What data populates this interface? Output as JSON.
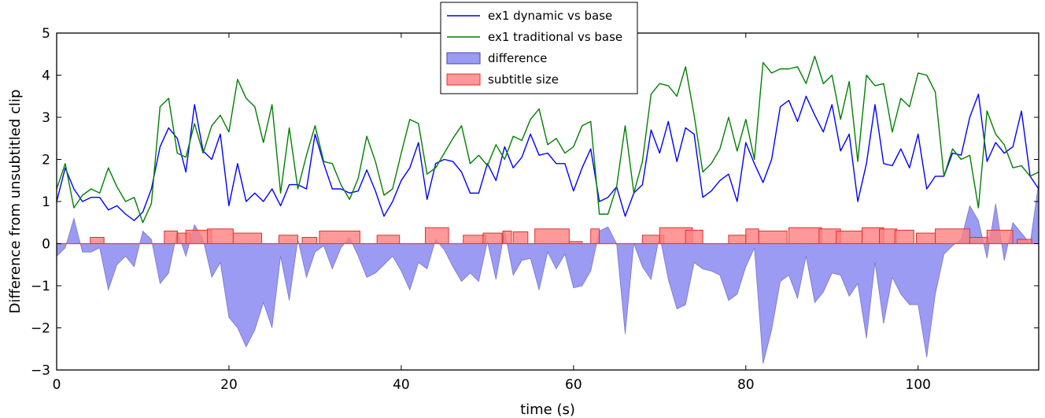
{
  "chart_data": {
    "type": "line",
    "title": "",
    "xlabel": "time (s)",
    "ylabel": "Difference from unsubtitled clip",
    "xlim": [
      0,
      114
    ],
    "ylim": [
      -3,
      5
    ],
    "xticks": [
      0,
      20,
      40,
      60,
      80,
      100
    ],
    "yticks": [
      -3,
      -2,
      -1,
      0,
      1,
      2,
      3,
      4,
      5
    ],
    "grid": false,
    "legend_position": "top-center",
    "series": [
      {
        "name": "ex1 dynamic vs base",
        "kind": "line",
        "color": "#0000ff",
        "x": [
          0,
          1,
          2,
          3,
          4,
          5,
          6,
          7,
          8,
          9,
          10,
          11,
          12,
          13,
          14,
          15,
          16,
          17,
          18,
          19,
          20,
          21,
          22,
          23,
          24,
          25,
          26,
          27,
          28,
          29,
          30,
          31,
          32,
          33,
          34,
          35,
          36,
          37,
          38,
          39,
          40,
          41,
          42,
          43,
          44,
          45,
          46,
          47,
          48,
          49,
          50,
          51,
          52,
          53,
          54,
          55,
          56,
          57,
          58,
          59,
          60,
          61,
          62,
          63,
          64,
          65,
          66,
          67,
          68,
          69,
          70,
          71,
          72,
          73,
          74,
          75,
          76,
          77,
          78,
          79,
          80,
          81,
          82,
          83,
          84,
          85,
          86,
          87,
          88,
          89,
          90,
          91,
          92,
          93,
          94,
          95,
          96,
          97,
          98,
          99,
          100,
          101,
          102,
          103,
          104,
          105,
          106,
          107,
          108,
          109,
          110,
          111,
          112,
          113,
          114
        ],
        "y": [
          1.0,
          1.8,
          1.3,
          1.0,
          1.1,
          1.1,
          0.8,
          0.9,
          0.7,
          0.55,
          0.75,
          1.3,
          2.3,
          2.75,
          2.5,
          1.7,
          3.3,
          2.2,
          2.0,
          2.6,
          0.9,
          1.9,
          1.0,
          1.2,
          1.0,
          1.3,
          0.9,
          1.4,
          1.4,
          1.3,
          2.6,
          1.9,
          1.3,
          1.3,
          1.2,
          1.25,
          1.75,
          1.25,
          0.65,
          1.0,
          1.5,
          1.8,
          2.4,
          1.05,
          1.9,
          2.0,
          1.95,
          1.7,
          1.2,
          1.2,
          1.9,
          1.5,
          2.3,
          1.8,
          2.05,
          2.6,
          2.1,
          2.15,
          1.9,
          1.9,
          1.25,
          1.8,
          2.25,
          1.0,
          1.1,
          1.35,
          0.65,
          1.2,
          1.4,
          2.7,
          2.15,
          2.9,
          1.95,
          2.75,
          2.6,
          1.1,
          1.25,
          1.5,
          1.65,
          1.0,
          2.4,
          1.9,
          1.45,
          2.0,
          3.25,
          3.4,
          2.9,
          3.5,
          3.05,
          2.65,
          3.3,
          2.2,
          2.6,
          1.0,
          1.9,
          3.3,
          1.9,
          1.85,
          2.25,
          1.8,
          2.6,
          1.3,
          1.6,
          1.6,
          2.15,
          2.1,
          3.0,
          3.55,
          1.95,
          2.4,
          2.15,
          2.3,
          3.15,
          1.6,
          1.3
        ]
      },
      {
        "name": "ex1 traditional vs base",
        "kind": "line",
        "color": "#008000",
        "x": [
          0,
          1,
          2,
          3,
          4,
          5,
          6,
          7,
          8,
          9,
          10,
          11,
          12,
          13,
          14,
          15,
          16,
          17,
          18,
          19,
          20,
          21,
          22,
          23,
          24,
          25,
          26,
          27,
          28,
          29,
          30,
          31,
          32,
          33,
          34,
          35,
          36,
          37,
          38,
          39,
          40,
          41,
          42,
          43,
          44,
          45,
          46,
          47,
          48,
          49,
          50,
          51,
          52,
          53,
          54,
          55,
          56,
          57,
          58,
          59,
          60,
          61,
          62,
          63,
          64,
          65,
          66,
          67,
          68,
          69,
          70,
          71,
          72,
          73,
          74,
          75,
          76,
          77,
          78,
          79,
          80,
          81,
          82,
          83,
          84,
          85,
          86,
          87,
          88,
          89,
          90,
          91,
          92,
          93,
          94,
          95,
          96,
          97,
          98,
          99,
          100,
          101,
          102,
          103,
          104,
          105,
          106,
          107,
          108,
          109,
          110,
          111,
          112,
          113,
          114
        ],
        "y": [
          1.3,
          1.9,
          0.85,
          1.15,
          1.3,
          1.2,
          1.8,
          1.35,
          1.0,
          1.1,
          0.5,
          0.95,
          3.25,
          3.45,
          2.15,
          2.05,
          2.85,
          2.15,
          2.8,
          3.05,
          2.65,
          3.9,
          3.45,
          3.25,
          2.4,
          3.3,
          1.2,
          2.75,
          1.3,
          2.1,
          2.8,
          1.95,
          1.9,
          1.4,
          1.05,
          1.55,
          2.55,
          1.95,
          1.15,
          1.3,
          2.15,
          2.95,
          2.85,
          1.65,
          1.8,
          2.15,
          2.5,
          2.8,
          1.9,
          2.1,
          1.85,
          2.35,
          2.0,
          2.55,
          2.45,
          2.95,
          3.2,
          2.35,
          2.5,
          2.15,
          2.3,
          2.8,
          2.9,
          0.7,
          0.7,
          1.35,
          2.8,
          1.2,
          1.95,
          3.55,
          3.8,
          3.75,
          3.5,
          4.2,
          3.05,
          1.7,
          1.9,
          2.25,
          3.0,
          2.2,
          2.95,
          2.0,
          4.3,
          4.05,
          4.15,
          4.15,
          4.2,
          3.8,
          4.45,
          3.8,
          4.0,
          2.95,
          3.85,
          1.95,
          4.0,
          3.75,
          3.8,
          2.65,
          3.45,
          3.25,
          4.05,
          4.0,
          3.6,
          1.6,
          2.25,
          2.0,
          2.1,
          0.85,
          3.15,
          2.6,
          2.35,
          1.8,
          1.85,
          1.6,
          1.7
        ]
      },
      {
        "name": "difference",
        "kind": "area",
        "color": "#6666ee",
        "x": [
          0,
          1,
          2,
          3,
          4,
          5,
          6,
          7,
          8,
          9,
          10,
          11,
          12,
          13,
          14,
          15,
          16,
          17,
          18,
          19,
          20,
          21,
          22,
          23,
          24,
          25,
          26,
          27,
          28,
          29,
          30,
          31,
          32,
          33,
          34,
          35,
          36,
          37,
          38,
          39,
          40,
          41,
          42,
          43,
          44,
          45,
          46,
          47,
          48,
          49,
          50,
          51,
          52,
          53,
          54,
          55,
          56,
          57,
          58,
          59,
          60,
          61,
          62,
          63,
          64,
          65,
          66,
          67,
          68,
          69,
          70,
          71,
          72,
          73,
          74,
          75,
          76,
          77,
          78,
          79,
          80,
          81,
          82,
          83,
          84,
          85,
          86,
          87,
          88,
          89,
          90,
          91,
          92,
          93,
          94,
          95,
          96,
          97,
          98,
          99,
          100,
          101,
          102,
          103,
          104,
          105,
          106,
          107,
          108,
          109,
          110,
          111,
          112,
          113,
          114
        ],
        "y": [
          -0.3,
          -0.1,
          0.6,
          -0.2,
          -0.2,
          -0.1,
          -1.1,
          -0.5,
          -0.3,
          -0.55,
          0.3,
          0.1,
          -0.95,
          -0.7,
          0.3,
          -0.3,
          0.45,
          0.1,
          -0.8,
          -0.45,
          -1.75,
          -2.0,
          -2.45,
          -2.05,
          -1.4,
          -2.0,
          -0.3,
          -1.35,
          0.1,
          -0.8,
          -0.2,
          -0.05,
          -0.6,
          -0.1,
          0.15,
          -0.3,
          -0.8,
          -0.7,
          -0.5,
          -0.3,
          -0.65,
          -1.1,
          -0.45,
          -0.6,
          0.1,
          -0.15,
          -0.55,
          -0.9,
          -0.7,
          -0.9,
          0.05,
          -0.85,
          0.3,
          -0.75,
          -0.4,
          -0.35,
          -1.1,
          -0.2,
          -0.6,
          -0.25,
          -1.05,
          -1.0,
          -0.65,
          0.3,
          0.4,
          -0.0,
          -2.15,
          0.0,
          -0.55,
          -0.85,
          0.2,
          -0.85,
          -1.55,
          -1.45,
          -0.45,
          -0.6,
          -0.65,
          -0.75,
          -1.35,
          -1.2,
          -0.55,
          -0.1,
          -2.85,
          -2.05,
          -0.9,
          -0.75,
          -1.3,
          -0.3,
          -1.4,
          -1.15,
          -0.7,
          -0.75,
          -1.25,
          -0.95,
          -2.25,
          -0.45,
          -1.9,
          -0.8,
          -1.2,
          -1.45,
          -1.45,
          -2.7,
          -1.2,
          -0.25,
          -0.05,
          0.1,
          0.9,
          0.55,
          -0.35,
          0.95,
          -0.4,
          0.5,
          0.25,
          0.0,
          1.45
        ]
      },
      {
        "name": "subtitle size",
        "kind": "bar",
        "color": "#ff8080",
        "segments": [
          [
            3.9,
            5.5,
            0.15
          ],
          [
            12.5,
            14.0,
            0.3
          ],
          [
            14.0,
            15.5,
            0.25
          ],
          [
            15.0,
            18.0,
            0.32
          ],
          [
            17.5,
            20.5,
            0.35
          ],
          [
            20.5,
            23.8,
            0.25
          ],
          [
            25.8,
            28.0,
            0.2
          ],
          [
            28.5,
            30.2,
            0.15
          ],
          [
            30.5,
            35.2,
            0.3
          ],
          [
            37.2,
            39.8,
            0.2
          ],
          [
            42.8,
            45.5,
            0.38
          ],
          [
            47.2,
            49.8,
            0.2
          ],
          [
            49.5,
            51.7,
            0.25
          ],
          [
            51.8,
            52.8,
            0.3
          ],
          [
            53.0,
            54.7,
            0.28
          ],
          [
            55.5,
            59.5,
            0.35
          ],
          [
            59.5,
            61.0,
            0.05
          ],
          [
            62.0,
            63.0,
            0.35
          ],
          [
            68.0,
            70.5,
            0.2
          ],
          [
            70.0,
            73.8,
            0.38
          ],
          [
            73.0,
            75.0,
            0.32
          ],
          [
            78.0,
            80.0,
            0.2
          ],
          [
            80.0,
            81.5,
            0.35
          ],
          [
            81.5,
            84.8,
            0.3
          ],
          [
            85.0,
            88.8,
            0.38
          ],
          [
            88.5,
            91.0,
            0.35
          ],
          [
            90.5,
            93.5,
            0.3
          ],
          [
            93.5,
            96.0,
            0.38
          ],
          [
            95.5,
            97.5,
            0.35
          ],
          [
            97.3,
            99.5,
            0.32
          ],
          [
            99.8,
            102.0,
            0.25
          ],
          [
            102.0,
            106.0,
            0.35
          ],
          [
            106.0,
            108.2,
            0.15
          ],
          [
            108.0,
            111.0,
            0.32
          ],
          [
            111.5,
            113.2,
            0.1
          ]
        ]
      }
    ]
  }
}
